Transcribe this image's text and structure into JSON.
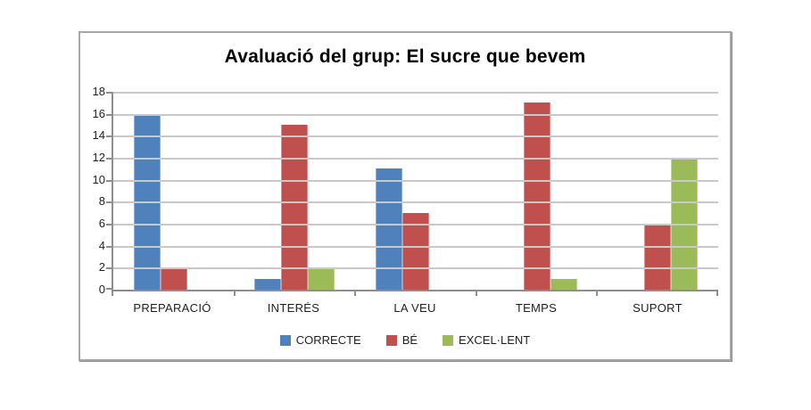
{
  "chart_data": {
    "type": "bar",
    "title": "Avaluació del grup: El sucre que bevem",
    "categories": [
      "PREPARACIÓ",
      "INTERÉS",
      "LA VEU",
      "TEMPS",
      "SUPORT"
    ],
    "series": [
      {
        "name": "CORRECTE",
        "color": "#4F81BD",
        "values": [
          16,
          1,
          11,
          0,
          0
        ]
      },
      {
        "name": "BÉ",
        "color": "#C0504D",
        "values": [
          2,
          15,
          7,
          17,
          6
        ]
      },
      {
        "name": "EXCEL·LENT",
        "color": "#9BBB59",
        "values": [
          0,
          2,
          0,
          1,
          12
        ]
      }
    ],
    "xlabel": "",
    "ylabel": "",
    "ylim": [
      0,
      18
    ],
    "yticks": [
      0,
      2,
      4,
      6,
      8,
      10,
      12,
      14,
      16,
      18
    ],
    "grid": true,
    "legend_position": "bottom"
  },
  "colors": {
    "axis": "#8E8E8E",
    "gridline": "#C9C9C9",
    "text": "#1F1F1F",
    "title_text": "#000000",
    "frame_border": "#A6A6A6",
    "background": "#FFFFFF"
  }
}
